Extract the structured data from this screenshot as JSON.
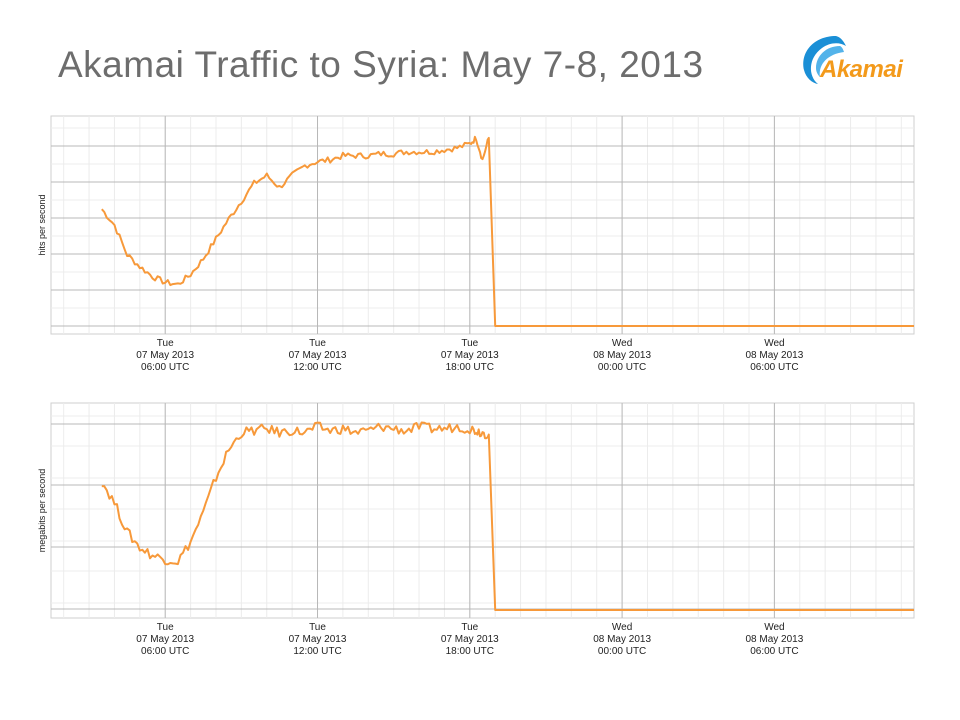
{
  "slide": {
    "title": "Akamai Traffic to Syria: May 7-8, 2013",
    "logo_text": "Akamai",
    "brand_color": "#f39a1b",
    "logo_icon": "akamai-swoosh-icon"
  },
  "chart_data": [
    {
      "type": "line",
      "ylabel": "hits per second",
      "xlabel": "",
      "series_color": "#f7993a",
      "grid": true,
      "x_axis_start": "2013-05-07 01:30 UTC",
      "x_axis_end": "2013-05-08 11:30 UTC",
      "ylim": [
        0,
        100
      ],
      "x_ticks": [
        {
          "day": "Tue",
          "date": "07 May 2013",
          "time": "06:00 UTC"
        },
        {
          "day": "Tue",
          "date": "07 May 2013",
          "time": "12:00 UTC"
        },
        {
          "day": "Tue",
          "date": "07 May 2013",
          "time": "18:00 UTC"
        },
        {
          "day": "Wed",
          "date": "08 May 2013",
          "time": "00:00 UTC"
        },
        {
          "day": "Wed",
          "date": "08 May 2013",
          "time": "06:00 UTC"
        }
      ],
      "x": [
        "2013-05-07 03:30",
        "2013-05-07 04:00",
        "2013-05-07 04:30",
        "2013-05-07 05:00",
        "2013-05-07 05:30",
        "2013-05-07 06:00",
        "2013-05-07 06:30",
        "2013-05-07 07:00",
        "2013-05-07 07:30",
        "2013-05-07 08:00",
        "2013-05-07 08:30",
        "2013-05-07 09:00",
        "2013-05-07 09:30",
        "2013-05-07 10:00",
        "2013-05-07 10:30",
        "2013-05-07 11:00",
        "2013-05-07 11:30",
        "2013-05-07 12:00",
        "2013-05-07 12:30",
        "2013-05-07 13:00",
        "2013-05-07 13:30",
        "2013-05-07 14:00",
        "2013-05-07 14:30",
        "2013-05-07 15:00",
        "2013-05-07 15:30",
        "2013-05-07 16:00",
        "2013-05-07 16:30",
        "2013-05-07 17:00",
        "2013-05-07 17:30",
        "2013-05-07 18:00",
        "2013-05-07 18:15",
        "2013-05-07 18:30",
        "2013-05-07 18:45",
        "2013-05-07 19:00",
        "2013-05-08 11:30"
      ],
      "series": [
        {
          "values": [
            59,
            51,
            36,
            30,
            25,
            22,
            21,
            26,
            34,
            44,
            54,
            63,
            72,
            76,
            70,
            76,
            81,
            83,
            84,
            86,
            86,
            86,
            87,
            87,
            88,
            88,
            88,
            89,
            90,
            92,
            95,
            84,
            95,
            0,
            0
          ]
        }
      ]
    },
    {
      "type": "line",
      "ylabel": "megabits per second",
      "xlabel": "",
      "series_color": "#f7993a",
      "grid": true,
      "x_axis_start": "2013-05-07 01:30 UTC",
      "x_axis_end": "2013-05-08 11:30 UTC",
      "ylim": [
        0,
        100
      ],
      "x_ticks": [
        {
          "day": "Tue",
          "date": "07 May 2013",
          "time": "06:00 UTC"
        },
        {
          "day": "Tue",
          "date": "07 May 2013",
          "time": "12:00 UTC"
        },
        {
          "day": "Tue",
          "date": "07 May 2013",
          "time": "18:00 UTC"
        },
        {
          "day": "Wed",
          "date": "08 May 2013",
          "time": "00:00 UTC"
        },
        {
          "day": "Wed",
          "date": "08 May 2013",
          "time": "06:00 UTC"
        }
      ],
      "x": [
        "2013-05-07 03:30",
        "2013-05-07 04:00",
        "2013-05-07 04:30",
        "2013-05-07 05:00",
        "2013-05-07 05:30",
        "2013-05-07 06:00",
        "2013-05-07 06:30",
        "2013-05-07 07:00",
        "2013-05-07 07:30",
        "2013-05-07 08:00",
        "2013-05-07 08:30",
        "2013-05-07 09:00",
        "2013-05-07 09:30",
        "2013-05-07 10:00",
        "2013-05-07 10:30",
        "2013-05-07 11:00",
        "2013-05-07 11:30",
        "2013-05-07 12:00",
        "2013-05-07 12:30",
        "2013-05-07 13:00",
        "2013-05-07 13:30",
        "2013-05-07 14:00",
        "2013-05-07 14:30",
        "2013-05-07 15:00",
        "2013-05-07 15:30",
        "2013-05-07 16:00",
        "2013-05-07 16:30",
        "2013-05-07 17:00",
        "2013-05-07 17:30",
        "2013-05-07 18:00",
        "2013-05-07 18:15",
        "2013-05-07 18:30",
        "2013-05-07 18:45",
        "2013-05-07 19:00",
        "2013-05-08 11:30"
      ],
      "series": [
        {
          "values": [
            66,
            55,
            40,
            32,
            28,
            26,
            25,
            35,
            50,
            68,
            82,
            91,
            92,
            93,
            91,
            92,
            91,
            94,
            92,
            93,
            91,
            92,
            94,
            93,
            92,
            94,
            93,
            93,
            94,
            93,
            92,
            91,
            90,
            0,
            0
          ]
        }
      ]
    }
  ]
}
